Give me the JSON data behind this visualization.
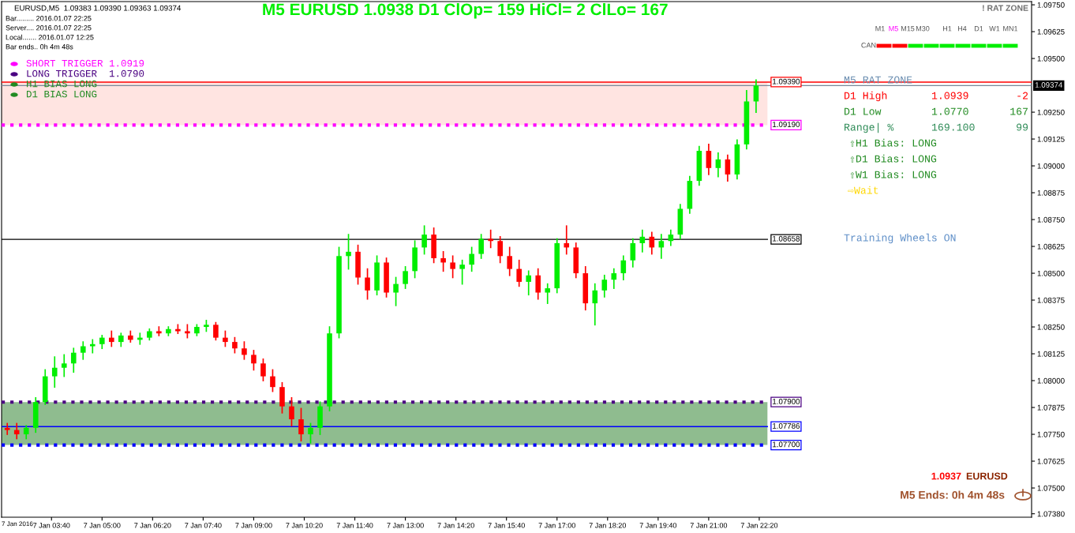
{
  "chart_data": {
    "type": "candlestick",
    "title": "M5 EURUSD 1.0938 D1 ClOp= 159 HiCl= 2 ClLo= 167",
    "x": [
      "2016-01-07T02:30",
      "2016-01-07T02:45",
      "2016-01-07T03:00",
      "2016-01-07T03:15",
      "2016-01-07T03:30",
      "2016-01-07T03:45",
      "2016-01-07T04:00",
      "2016-01-07T04:15",
      "2016-01-07T04:30",
      "2016-01-07T04:45",
      "2016-01-07T05:00",
      "2016-01-07T05:15",
      "2016-01-07T05:30",
      "2016-01-07T05:45",
      "2016-01-07T06:00",
      "2016-01-07T06:15",
      "2016-01-07T06:30",
      "2016-01-07T06:45",
      "2016-01-07T07:00",
      "2016-01-07T07:15",
      "2016-01-07T07:30",
      "2016-01-07T07:45",
      "2016-01-07T08:00",
      "2016-01-07T08:15",
      "2016-01-07T08:30",
      "2016-01-07T08:45",
      "2016-01-07T09:00",
      "2016-01-07T09:15",
      "2016-01-07T09:30",
      "2016-01-07T09:45",
      "2016-01-07T10:00",
      "2016-01-07T10:15",
      "2016-01-07T10:30",
      "2016-01-07T10:45",
      "2016-01-07T11:00",
      "2016-01-07T11:15",
      "2016-01-07T11:30",
      "2016-01-07T11:45",
      "2016-01-07T12:00",
      "2016-01-07T12:15",
      "2016-01-07T12:30",
      "2016-01-07T12:45",
      "2016-01-07T13:00",
      "2016-01-07T13:15",
      "2016-01-07T13:30",
      "2016-01-07T13:45",
      "2016-01-07T14:00",
      "2016-01-07T14:15",
      "2016-01-07T14:30",
      "2016-01-07T14:45",
      "2016-01-07T15:00",
      "2016-01-07T15:15",
      "2016-01-07T15:30",
      "2016-01-07T15:45",
      "2016-01-07T16:00",
      "2016-01-07T16:15",
      "2016-01-07T16:30",
      "2016-01-07T16:45",
      "2016-01-07T17:00",
      "2016-01-07T17:15",
      "2016-01-07T17:30",
      "2016-01-07T17:45",
      "2016-01-07T18:00",
      "2016-01-07T18:15",
      "2016-01-07T18:30",
      "2016-01-07T18:45",
      "2016-01-07T19:00",
      "2016-01-07T19:15",
      "2016-01-07T19:30",
      "2016-01-07T19:45",
      "2016-01-07T20:00",
      "2016-01-07T20:15",
      "2016-01-07T20:30",
      "2016-01-07T20:45",
      "2016-01-07T21:00",
      "2016-01-07T21:15",
      "2016-01-07T21:30",
      "2016-01-07T21:45",
      "2016-01-07T22:00",
      "2016-01-07T22:15"
    ],
    "ohlc": [
      [
        1.0778,
        1.078,
        1.0775,
        1.0777
      ],
      [
        1.0777,
        1.078,
        1.0773,
        1.0775
      ],
      [
        1.0775,
        1.0779,
        1.0773,
        1.0778
      ],
      [
        1.0778,
        1.0792,
        1.0776,
        1.079
      ],
      [
        1.079,
        1.0805,
        1.0789,
        1.0802
      ],
      [
        1.0802,
        1.0811,
        1.0797,
        1.0806
      ],
      [
        1.0806,
        1.0812,
        1.0802,
        1.0808
      ],
      [
        1.0808,
        1.0815,
        1.0804,
        1.0813
      ],
      [
        1.0813,
        1.0818,
        1.081,
        1.0816
      ],
      [
        1.0816,
        1.0819,
        1.0813,
        1.0817
      ],
      [
        1.0817,
        1.0821,
        1.0815,
        1.082
      ],
      [
        1.082,
        1.0823,
        1.0816,
        1.0818
      ],
      [
        1.0818,
        1.0822,
        1.0816,
        1.0821
      ],
      [
        1.0821,
        1.0823,
        1.0818,
        1.0819
      ],
      [
        1.0819,
        1.0822,
        1.0817,
        1.082
      ],
      [
        1.082,
        1.0824,
        1.0819,
        1.0823
      ],
      [
        1.0823,
        1.0825,
        1.0821,
        1.0822
      ],
      [
        1.0822,
        1.0825,
        1.0821,
        1.0824
      ],
      [
        1.0824,
        1.0826,
        1.0822,
        1.0823
      ],
      [
        1.0823,
        1.0826,
        1.082,
        1.0822
      ],
      [
        1.0822,
        1.0826,
        1.0821,
        1.0825
      ],
      [
        1.0825,
        1.0828,
        1.0823,
        1.0826
      ],
      [
        1.0826,
        1.0827,
        1.0819,
        1.082
      ],
      [
        1.082,
        1.0823,
        1.0816,
        1.0818
      ],
      [
        1.0818,
        1.082,
        1.0813,
        1.0815
      ],
      [
        1.0815,
        1.0818,
        1.081,
        1.0812
      ],
      [
        1.0812,
        1.0814,
        1.0805,
        1.0808
      ],
      [
        1.0808,
        1.081,
        1.08,
        1.0802
      ],
      [
        1.0802,
        1.0805,
        1.0795,
        1.0797
      ],
      [
        1.0797,
        1.0799,
        1.0785,
        1.0788
      ],
      [
        1.0788,
        1.0792,
        1.0779,
        1.0782
      ],
      [
        1.0782,
        1.0787,
        1.0772,
        1.0775
      ],
      [
        1.0775,
        1.078,
        1.0771,
        1.0778
      ],
      [
        1.0778,
        1.079,
        1.0775,
        1.0788
      ],
      [
        1.0788,
        1.0825,
        1.0786,
        1.0822
      ],
      [
        1.0822,
        1.0862,
        1.082,
        1.0858
      ],
      [
        1.0858,
        1.0868,
        1.0852,
        1.086
      ],
      [
        1.086,
        1.0863,
        1.0845,
        1.0848
      ],
      [
        1.0848,
        1.0852,
        1.0838,
        1.0842
      ],
      [
        1.0842,
        1.0858,
        1.084,
        1.0855
      ],
      [
        1.0855,
        1.0857,
        1.0839,
        1.0841
      ],
      [
        1.0841,
        1.0848,
        1.0835,
        1.0845
      ],
      [
        1.0845,
        1.0853,
        1.0843,
        1.0851
      ],
      [
        1.0851,
        1.0865,
        1.0848,
        1.0862
      ],
      [
        1.0862,
        1.0872,
        1.0859,
        1.0868
      ],
      [
        1.0868,
        1.0871,
        1.0855,
        1.0857
      ],
      [
        1.0857,
        1.086,
        1.0851,
        1.0855
      ],
      [
        1.0855,
        1.0858,
        1.0848,
        1.0852
      ],
      [
        1.0852,
        1.0856,
        1.0845,
        1.0854
      ],
      [
        1.0854,
        1.0862,
        1.0851,
        1.0859
      ],
      [
        1.0859,
        1.0868,
        1.0857,
        1.0866
      ],
      [
        1.0866,
        1.087,
        1.0862,
        1.0865
      ],
      [
        1.0865,
        1.0867,
        1.0855,
        1.0858
      ],
      [
        1.0858,
        1.0862,
        1.0849,
        1.0852
      ],
      [
        1.0852,
        1.0856,
        1.0844,
        1.0846
      ],
      [
        1.0846,
        1.0851,
        1.084,
        1.0849
      ],
      [
        1.0849,
        1.0852,
        1.0838,
        1.0841
      ],
      [
        1.0841,
        1.0845,
        1.0836,
        1.0843
      ],
      [
        1.0843,
        1.0866,
        1.0841,
        1.0864
      ],
      [
        1.0864,
        1.0872,
        1.0859,
        1.0862
      ],
      [
        1.0862,
        1.0864,
        1.0848,
        1.085
      ],
      [
        1.085,
        1.0853,
        1.0833,
        1.0836
      ],
      [
        1.0836,
        1.0845,
        1.0826,
        1.0842
      ],
      [
        1.0842,
        1.0849,
        1.0839,
        1.0847
      ],
      [
        1.0847,
        1.0852,
        1.0843,
        1.085
      ],
      [
        1.085,
        1.0858,
        1.0847,
        1.0856
      ],
      [
        1.0856,
        1.0866,
        1.0853,
        1.0864
      ],
      [
        1.0864,
        1.087,
        1.086,
        1.0867
      ],
      [
        1.0867,
        1.0869,
        1.0859,
        1.0862
      ],
      [
        1.0862,
        1.0868,
        1.0857,
        1.0865
      ],
      [
        1.0865,
        1.087,
        1.0863,
        1.0868
      ],
      [
        1.0868,
        1.0882,
        1.0866,
        1.088
      ],
      [
        1.088,
        1.0895,
        1.0878,
        1.0893
      ],
      [
        1.0893,
        1.0909,
        1.0891,
        1.0907
      ],
      [
        1.0907,
        1.091,
        1.0896,
        1.0899
      ],
      [
        1.0899,
        1.0906,
        1.0895,
        1.0903
      ],
      [
        1.0903,
        1.0905,
        1.0893,
        1.0896
      ],
      [
        1.0896,
        1.0912,
        1.0894,
        1.091
      ],
      [
        1.091,
        1.0935,
        1.0908,
        1.093
      ],
      [
        1.093,
        1.094,
        1.0925,
        1.09374
      ]
    ],
    "colors": [
      "#ff0000",
      "#ff0000",
      "#00ee00",
      "#00ee00",
      "#00ee00",
      "#00ee00",
      "#00ee00",
      "#00ee00",
      "#00ee00",
      "#00ee00",
      "#00ee00",
      "#ff0000",
      "#00ee00",
      "#ff0000",
      "#00ee00",
      "#00ee00",
      "#ff0000",
      "#00ee00",
      "#ff0000",
      "#ff0000",
      "#00ee00",
      "#00ee00",
      "#ff0000",
      "#ff0000",
      "#ff0000",
      "#ff0000",
      "#ff0000",
      "#ff0000",
      "#ff0000",
      "#ff0000",
      "#ff0000",
      "#ff0000",
      "#00ee00",
      "#00ee00",
      "#00ee00",
      "#00ee00",
      "#00ee00",
      "#ff0000",
      "#ff0000",
      "#00ee00",
      "#ff0000",
      "#00ee00",
      "#00ee00",
      "#00ee00",
      "#00ee00",
      "#ff0000",
      "#ff0000",
      "#ff0000",
      "#00ee00",
      "#00ee00",
      "#00ee00",
      "#ff0000",
      "#ff0000",
      "#ff0000",
      "#ff0000",
      "#00ee00",
      "#ff0000",
      "#00ee00",
      "#00ee00",
      "#ff0000",
      "#ff0000",
      "#ff0000",
      "#00ee00",
      "#00ee00",
      "#00ee00",
      "#00ee00",
      "#00ee00",
      "#00ee00",
      "#ff0000",
      "#00ee00",
      "#00ee00",
      "#00ee00",
      "#00ee00",
      "#00ee00",
      "#ff0000",
      "#00ee00",
      "#ff0000",
      "#00ee00",
      "#00ee00",
      "#00ee00"
    ],
    "xlim": [
      "2016-01-07T02:21",
      "2016-01-08T05:31"
    ],
    "ylim": [
      1.07364,
      1.09765
    ],
    "xticks": [
      {
        "value": "2016-01-07T03:40",
        "label": "7 Jan 03:40"
      },
      {
        "value": "2016-01-07T05:00",
        "label": "7 Jan 05:00"
      },
      {
        "value": "2016-01-07T06:20",
        "label": "7 Jan 06:20"
      },
      {
        "value": "2016-01-07T07:40",
        "label": "7 Jan 07:40"
      },
      {
        "value": "2016-01-07T09:00",
        "label": "7 Jan 09:00"
      },
      {
        "value": "2016-01-07T10:20",
        "label": "7 Jan 10:20"
      },
      {
        "value": "2016-01-07T11:40",
        "label": "7 Jan 11:40"
      },
      {
        "value": "2016-01-07T13:00",
        "label": "7 Jan 13:00"
      },
      {
        "value": "2016-01-07T14:20",
        "label": "7 Jan 14:20"
      },
      {
        "value": "2016-01-07T15:40",
        "label": "7 Jan 15:40"
      },
      {
        "value": "2016-01-07T17:00",
        "label": "7 Jan 17:00"
      },
      {
        "value": "2016-01-07T18:20",
        "label": "7 Jan 18:20"
      },
      {
        "value": "2016-01-07T19:40",
        "label": "7 Jan 19:40"
      },
      {
        "value": "2016-01-07T21:00",
        "label": "7 Jan 21:00"
      },
      {
        "value": "2016-01-07T22:20",
        "label": "7 Jan 22:20"
      }
    ],
    "yticks": [
      {
        "value": 1.0975,
        "label": "1.09750"
      },
      {
        "value": 1.09625,
        "label": "1.09625"
      },
      {
        "value": 1.095,
        "label": "1.09500"
      },
      {
        "value": 1.0925,
        "label": "1.09250"
      },
      {
        "value": 1.09125,
        "label": "1.09125"
      },
      {
        "value": 1.09,
        "label": "1.09000"
      },
      {
        "value": 1.08875,
        "label": "1.08875"
      },
      {
        "value": 1.0875,
        "label": "1.08750"
      },
      {
        "value": 1.08625,
        "label": "1.08625"
      },
      {
        "value": 1.085,
        "label": "1.08500"
      },
      {
        "value": 1.08375,
        "label": "1.08375"
      },
      {
        "value": 1.0825,
        "label": "1.08250"
      },
      {
        "value": 1.08125,
        "label": "1.08125"
      },
      {
        "value": 1.08,
        "label": "1.08000"
      },
      {
        "value": 1.07875,
        "label": "1.07875"
      },
      {
        "value": 1.0775,
        "label": "1.07750"
      },
      {
        "value": 1.07625,
        "label": "1.07625"
      },
      {
        "value": 1.075,
        "label": "1.07500"
      },
      {
        "value": 1.0738,
        "label": "1.07380"
      }
    ],
    "bands": [
      {
        "axis": "y",
        "from": 1.0919,
        "to": 1.0939,
        "color": "#ffe4e1"
      },
      {
        "axis": "y",
        "from": 1.077,
        "to": 1.079,
        "color": "#8fbc8f"
      }
    ],
    "ref_lines": [
      {
        "axis": "y",
        "value": 1.0939,
        "label": "1.09390",
        "color": "#ff0000",
        "line_style": "solid"
      },
      {
        "axis": "y",
        "value": 1.0919,
        "label": "1.09190",
        "color": "#ff00ff",
        "line_style": "dotted"
      },
      {
        "axis": "y",
        "value": 1.08658,
        "label": "1.08658",
        "color": "#000000",
        "line_style": "solid"
      },
      {
        "axis": "y",
        "value": 1.079,
        "label": "1.07900",
        "color": "#4b0082",
        "line_style": "dotted"
      },
      {
        "axis": "y",
        "value": 1.07786,
        "label": "1.07786",
        "color": "#0000ff",
        "line_style": "solid"
      },
      {
        "axis": "y",
        "value": 1.077,
        "label": "1.07700",
        "color": "#0000ff",
        "line_style": "dotted"
      },
      {
        "axis": "y",
        "value": 1.09374,
        "label": "1.09374",
        "color": "#778899",
        "line_style": "solid"
      }
    ],
    "annotations": [
      "EURUSD,M5  1.09383 1.09390 1.09363 1.09374",
      "Bar......... 2016.01.07 22:25",
      "Server.... 2016.01.07 22:25",
      "Local....... 2016.01.07 12:25",
      "Bar ends.. 0h 4m 48s",
      "SHORT TRIGGER 1.0919",
      "LONG TRIGGER  1.0790",
      "H1 BIAS LONG",
      "D1 BIAS LONG",
      "! RAT ZONE",
      "M1",
      "M5",
      "M15",
      "M30",
      "H1",
      "H4",
      "D1",
      "W1",
      "MN1",
      "CAN",
      "M5 RAT ZONE",
      "D1 High",
      "1.0939",
      "-2",
      "D1 Low",
      "1.0770",
      "167",
      "Range| %",
      "169.100",
      "99",
      "⇧H1 Bias: LONG",
      "⇧D1 Bias: LONG",
      "⇧W1 Bias: LONG",
      "⇨Wait",
      "Training Wheels ON",
      "1.0937",
      "EURUSD",
      "M5 Ends: 0h 4m 48s",
      "7 Jan 2016"
    ]
  }
}
